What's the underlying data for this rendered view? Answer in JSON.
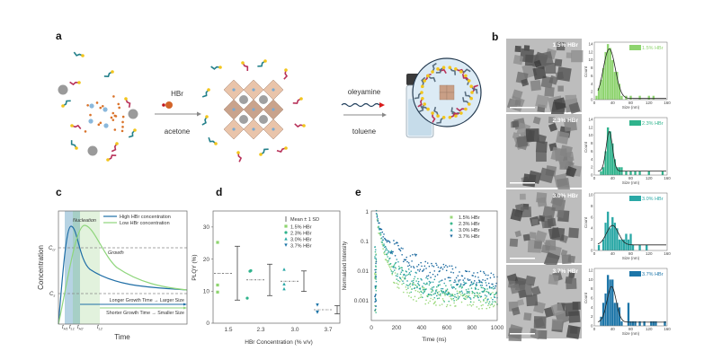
{
  "panel_labels": {
    "a": "a",
    "b": "b",
    "c": "c",
    "d": "d",
    "e": "e"
  },
  "panel_a": {
    "reagent1": "HBr",
    "solvent1": "acetone",
    "reagent2": "oleyamine",
    "solvent2": "toluene"
  },
  "panel_b": {
    "tem_labels": [
      "1.5% HBr",
      "2.3% HBr",
      "3.0% HBr",
      "3.7% HBr"
    ],
    "histograms": [
      {
        "legend": "1.5% HBr",
        "color": "#8ed46f",
        "ylabel": "Count",
        "xlabel": "Size (nm)",
        "xlim": [
          0,
          160
        ],
        "xticks": [
          "0",
          "40",
          "80",
          "120",
          "160"
        ],
        "ylim": [
          0,
          14
        ],
        "yticks": [
          "0",
          "2",
          "4",
          "6",
          "8",
          "10",
          "12",
          "14"
        ],
        "bins": [
          [
            5,
            1
          ],
          [
            10,
            3
          ],
          [
            15,
            5
          ],
          [
            20,
            8
          ],
          [
            25,
            12
          ],
          [
            30,
            14
          ],
          [
            35,
            13
          ],
          [
            40,
            10
          ],
          [
            45,
            7
          ],
          [
            50,
            7
          ],
          [
            55,
            4
          ],
          [
            60,
            1
          ],
          [
            70,
            1
          ],
          [
            80,
            1
          ],
          [
            100,
            1
          ],
          [
            120,
            1
          ],
          [
            130,
            1
          ]
        ],
        "fit": {
          "peak": 12.8,
          "center": 33,
          "sigma": 13,
          "baseline": 0.3
        }
      },
      {
        "legend": "2.3% HBr",
        "color": "#2fb38c",
        "ylabel": "Count",
        "xlabel": "Size (nm)",
        "xlim": [
          0,
          160
        ],
        "xticks": [
          "0",
          "40",
          "80",
          "120",
          "160"
        ],
        "ylim": [
          0,
          14
        ],
        "yticks": [
          "0",
          "2",
          "4",
          "6",
          "8",
          "10",
          "12",
          "14"
        ],
        "bins": [
          [
            15,
            1
          ],
          [
            20,
            2
          ],
          [
            25,
            6
          ],
          [
            30,
            12
          ],
          [
            35,
            11
          ],
          [
            40,
            8
          ],
          [
            45,
            4
          ],
          [
            50,
            2
          ],
          [
            55,
            2
          ],
          [
            60,
            2
          ],
          [
            70,
            1
          ],
          [
            80,
            1
          ],
          [
            90,
            1
          ],
          [
            100,
            1
          ],
          [
            120,
            1
          ],
          [
            150,
            1
          ]
        ],
        "fit": {
          "peak": 11,
          "center": 33,
          "sigma": 7,
          "baseline": 1
        }
      },
      {
        "legend": "3.0% HBr",
        "color": "#2aa8a6",
        "ylabel": "Count",
        "xlabel": "Size (nm)",
        "xlim": [
          0,
          160
        ],
        "xticks": [
          "0",
          "40",
          "80",
          "120",
          "160"
        ],
        "ylim": [
          0,
          10
        ],
        "yticks": [
          "0",
          "2",
          "4",
          "6",
          "8",
          "10"
        ],
        "bins": [
          [
            10,
            1
          ],
          [
            20,
            2
          ],
          [
            25,
            5
          ],
          [
            30,
            7
          ],
          [
            35,
            4
          ],
          [
            40,
            6
          ],
          [
            45,
            5
          ],
          [
            50,
            4
          ],
          [
            55,
            2
          ],
          [
            60,
            2
          ],
          [
            65,
            2
          ],
          [
            70,
            3
          ],
          [
            75,
            2
          ],
          [
            80,
            3
          ],
          [
            85,
            1
          ],
          [
            100,
            1
          ],
          [
            115,
            1
          ]
        ],
        "fit": {
          "peak": 4.5,
          "center": 40,
          "sigma": 13,
          "baseline": 1
        }
      },
      {
        "legend": "3.7% HBr",
        "color": "#1c75a8",
        "ylabel": "Count",
        "xlabel": "Size (nm)",
        "xlim": [
          0,
          160
        ],
        "xticks": [
          "0",
          "40",
          "80",
          "120",
          "160"
        ],
        "ylim": [
          0,
          12
        ],
        "yticks": [
          "0",
          "2",
          "4",
          "6",
          "8",
          "10",
          "12"
        ],
        "bins": [
          [
            15,
            2
          ],
          [
            20,
            5
          ],
          [
            25,
            7
          ],
          [
            30,
            11
          ],
          [
            35,
            10
          ],
          [
            40,
            10
          ],
          [
            45,
            5
          ],
          [
            50,
            5
          ],
          [
            55,
            4
          ],
          [
            60,
            1
          ],
          [
            75,
            5
          ],
          [
            80,
            1
          ],
          [
            85,
            1
          ],
          [
            90,
            1
          ],
          [
            100,
            1
          ],
          [
            110,
            1
          ],
          [
            125,
            1
          ],
          [
            130,
            1
          ],
          [
            135,
            1
          ],
          [
            155,
            1
          ]
        ],
        "fit": {
          "peak": 8.5,
          "center": 38,
          "sigma": 10,
          "baseline": 0.8
        }
      }
    ]
  },
  "panel_c": {
    "ylabel": "Concentration",
    "xlabel": "Time",
    "c_cr": "C",
    "c_cr_sub": "cr",
    "c_s": "C",
    "c_s_sub": "s",
    "nucleation": "Nucleation",
    "growth": "Growth",
    "legend": [
      {
        "label": "High HBr concentration",
        "color": "#1f6ea6"
      },
      {
        "label": "Low HBr concentration",
        "color": "#8fd67c"
      }
    ],
    "arrow_long": "Longer Growth Time → Larger Size",
    "arrow_short": "Shorter Growth Time → Smaller Size",
    "ticks": [
      {
        "t": "t",
        "s": "H1"
      },
      {
        "t": "t",
        "s": "L1"
      },
      {
        "t": "t",
        "s": "H2"
      },
      {
        "t": "t",
        "s": "L2"
      }
    ]
  },
  "chart_data": [
    {
      "type": "scatter",
      "panel": "d",
      "xlabel": "HBr Concentration (% v/v)",
      "ylabel": "PLQY (%)",
      "categories": [
        "1.5",
        "2.3",
        "3.0",
        "3.7"
      ],
      "ylim": [
        0,
        35
      ],
      "yticks": [
        "0",
        "10",
        "20",
        "30"
      ],
      "legend_placement": "top-right",
      "legend_errorbar": "Mean ± 1 SD",
      "series": [
        {
          "name": "1.5% HBr",
          "marker": "square",
          "color": "#8ed46f",
          "values": [
            25.2,
            11.9,
            9.7
          ],
          "mean": 15.6,
          "sd": 8.4
        },
        {
          "name": "2.3% HBr",
          "marker": "circle",
          "color": "#2fb38c",
          "values": [
            16.2,
            16.4,
            7.8
          ],
          "mean": 13.5,
          "sd": 4.9
        },
        {
          "name": "3.0% HBr",
          "marker": "triangle-up",
          "color": "#2aa8a6",
          "values": [
            16.8,
            12.2,
            10.7
          ],
          "mean": 13.1,
          "sd": 3.2
        },
        {
          "name": "3.7% HBr",
          "marker": "triangle-down",
          "color": "#1c75a8",
          "values": [
            5.7,
            3.4,
            3.5
          ],
          "mean": 4.2,
          "sd": 1.3
        }
      ]
    },
    {
      "type": "scatter",
      "panel": "e",
      "xlabel": "Time (ns)",
      "ylabel": "Normalised Intensity",
      "xlim": [
        0,
        1000
      ],
      "xticks": [
        "0",
        "200",
        "400",
        "600",
        "800",
        "1000"
      ],
      "yscale": "log",
      "ylim": [
        0.0002,
        1
      ],
      "yticks": [
        "1",
        "0.1",
        "0.01",
        "0.001"
      ],
      "legend_placement": "top-right",
      "series": [
        {
          "name": "1.5% HBr",
          "marker": "square",
          "color": "#9ad87a",
          "points": [
            [
              40,
              1
            ],
            [
              60,
              0.2
            ],
            [
              100,
              0.04
            ],
            [
              150,
              0.012
            ],
            [
              200,
              0.006
            ],
            [
              300,
              0.0025
            ],
            [
              400,
              0.0015
            ],
            [
              600,
              0.0012
            ],
            [
              1000,
              0.001
            ]
          ]
        },
        {
          "name": "2.3% HBr",
          "marker": "circle",
          "color": "#3cb88c",
          "points": [
            [
              40,
              1
            ],
            [
              60,
              0.25
            ],
            [
              100,
              0.06
            ],
            [
              150,
              0.02
            ],
            [
              200,
              0.01
            ],
            [
              300,
              0.004
            ],
            [
              400,
              0.0025
            ],
            [
              600,
              0.0018
            ],
            [
              1000,
              0.0015
            ]
          ]
        },
        {
          "name": "3.0% HBr",
          "marker": "triangle-up",
          "color": "#2a9fa6",
          "points": [
            [
              40,
              1
            ],
            [
              60,
              0.3
            ],
            [
              100,
              0.08
            ],
            [
              150,
              0.03
            ],
            [
              200,
              0.014
            ],
            [
              300,
              0.006
            ],
            [
              400,
              0.0035
            ],
            [
              600,
              0.0025
            ],
            [
              1000,
              0.002
            ]
          ]
        },
        {
          "name": "3.7% HBr",
          "marker": "triangle-down",
          "color": "#1c6aa0",
          "points": [
            [
              40,
              1
            ],
            [
              60,
              0.4
            ],
            [
              100,
              0.15
            ],
            [
              150,
              0.08
            ],
            [
              200,
              0.05
            ],
            [
              300,
              0.025
            ],
            [
              400,
              0.015
            ],
            [
              600,
              0.008
            ],
            [
              800,
              0.006
            ],
            [
              1000,
              0.004
            ]
          ]
        }
      ]
    }
  ]
}
